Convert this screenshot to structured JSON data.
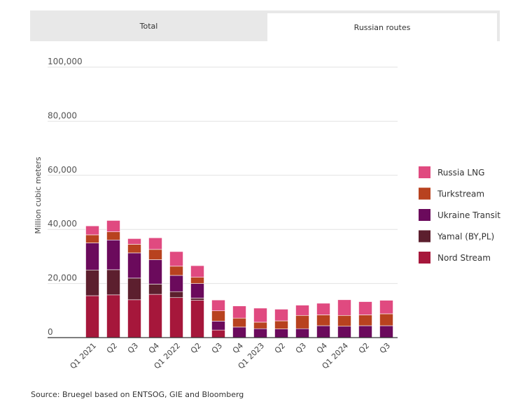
{
  "tabs": [
    {
      "label": "Total",
      "active": false
    },
    {
      "label": "Russian routes",
      "active": true
    }
  ],
  "source": "Source: Bruegel based on ENTSOG, GIE and Bloomberg",
  "chart_data": {
    "type": "bar",
    "stacked": true,
    "ylabel": "Million cubic meters",
    "ylim": [
      0,
      100000
    ],
    "yticks": [
      0,
      20000,
      40000,
      60000,
      80000,
      100000
    ],
    "ytick_labels": [
      "0",
      "20,000",
      "40,000",
      "60,000",
      "80,000",
      "100,000"
    ],
    "categories": [
      "Q1 2021",
      "Q2",
      "Q3",
      "Q4",
      "Q1 2022",
      "Q2",
      "Q3",
      "Q4",
      "Q1 2023",
      "Q2",
      "Q3",
      "Q4",
      "Q1 2024",
      "Q2",
      "Q3"
    ],
    "legend_position": "right",
    "series": [
      {
        "name": "Nord Stream",
        "color": "#a6173b",
        "values": [
          15500,
          15800,
          14000,
          16000,
          14800,
          13800,
          2800,
          0,
          0,
          0,
          0,
          0,
          0,
          0,
          0
        ]
      },
      {
        "name": "Yamal (BY,PL)",
        "color": "#5c1f2e",
        "values": [
          9500,
          9300,
          8000,
          3800,
          2200,
          800,
          0,
          0,
          0,
          0,
          0,
          0,
          0,
          0,
          0
        ]
      },
      {
        "name": "Ukraine Transit",
        "color": "#6b0a5c",
        "values": [
          10000,
          11000,
          9300,
          9000,
          6000,
          5400,
          3300,
          3900,
          3300,
          3200,
          3300,
          4400,
          4200,
          4400,
          4400
        ]
      },
      {
        "name": "Turkstream",
        "color": "#b8421f",
        "values": [
          3000,
          3000,
          3200,
          3800,
          3400,
          2300,
          3800,
          3300,
          2400,
          3000,
          4900,
          4000,
          4000,
          4000,
          4400
        ]
      },
      {
        "name": "Russia LNG",
        "color": "#e04a80",
        "values": [
          3300,
          4200,
          2100,
          4300,
          5400,
          4300,
          4000,
          4500,
          5200,
          4300,
          3800,
          4300,
          5800,
          4900,
          5000
        ]
      }
    ],
    "legend_order": [
      "Russia LNG",
      "Turkstream",
      "Ukraine Transit",
      "Yamal (BY,PL)",
      "Nord Stream"
    ]
  }
}
